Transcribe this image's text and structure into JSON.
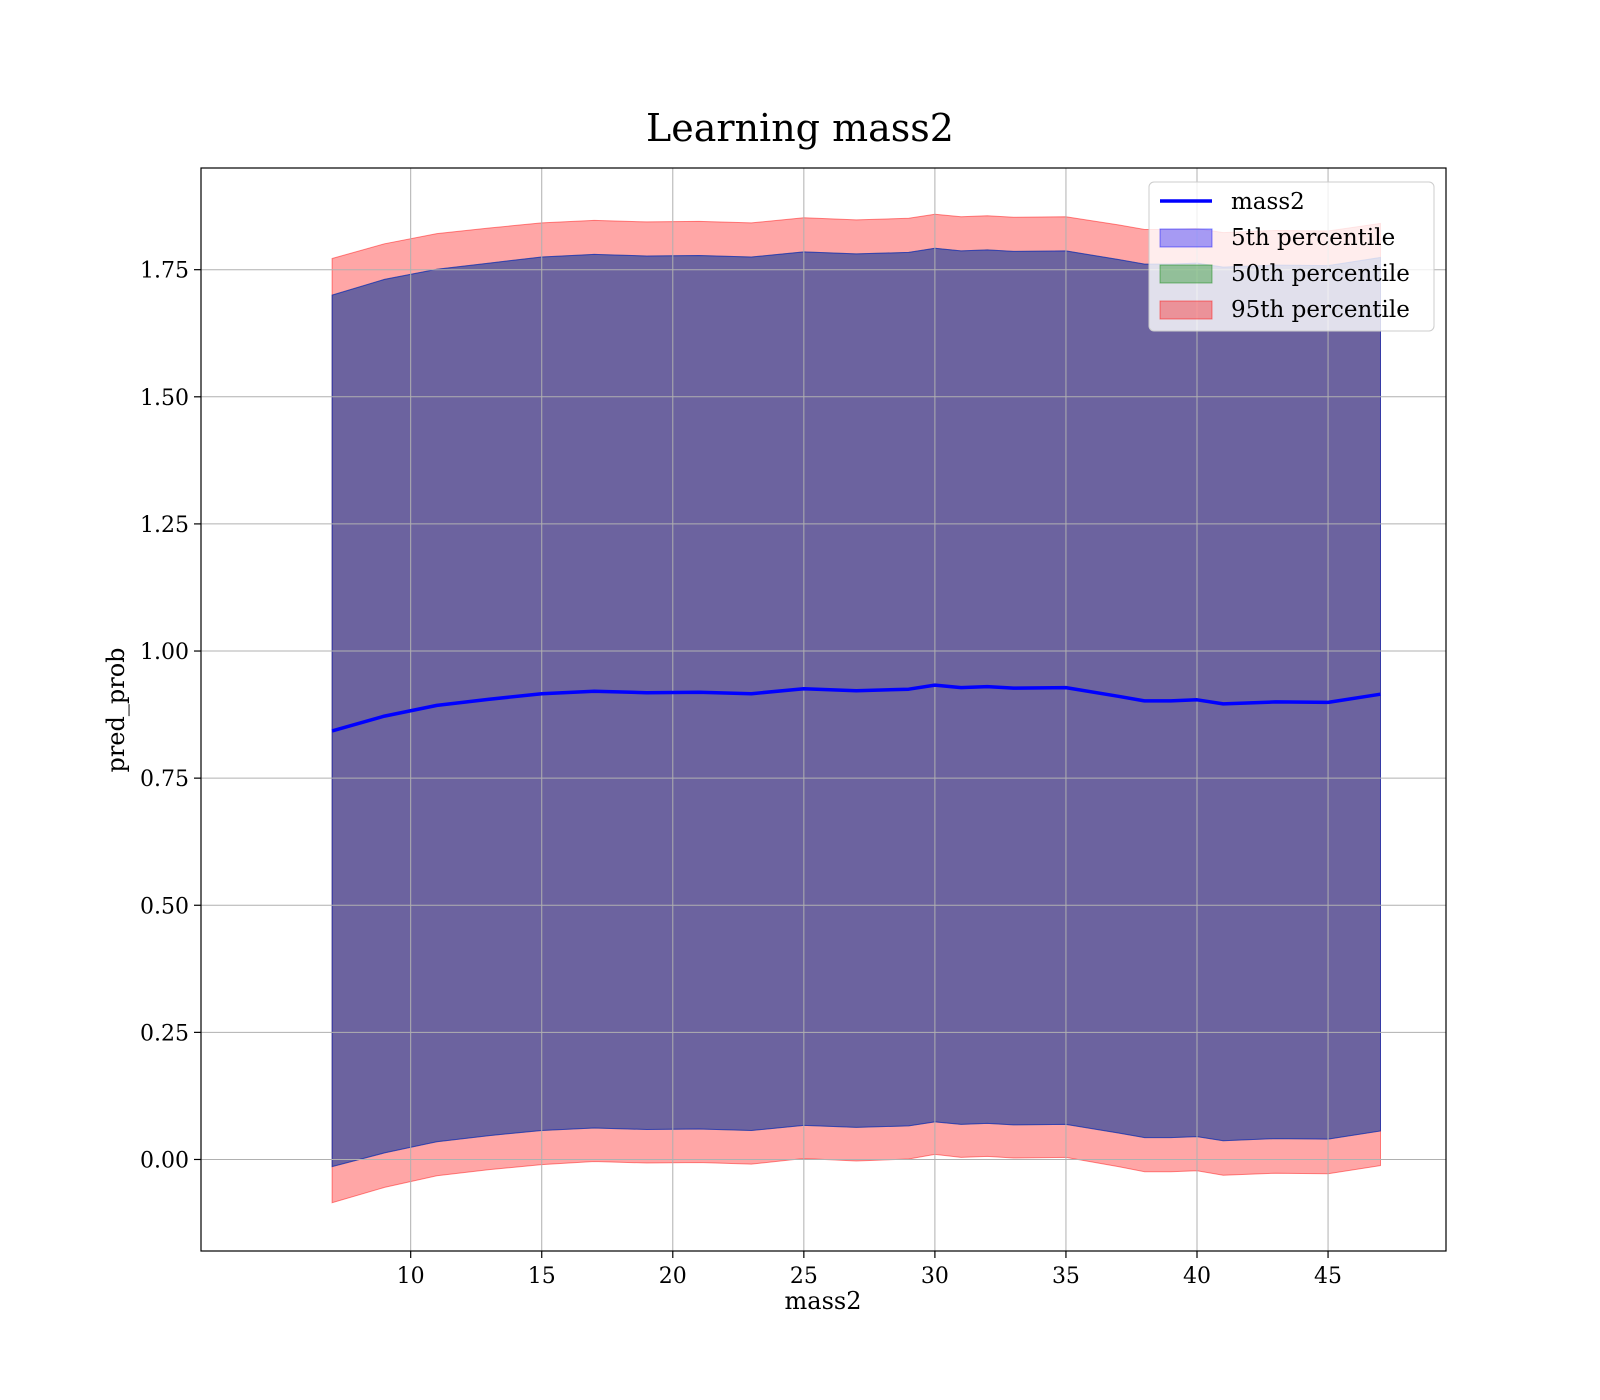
{
  "chart_data": {
    "type": "area",
    "title": "Learning mass2",
    "xlabel": "mass2",
    "ylabel": "pred_prob",
    "xlim": [
      2,
      49.5
    ],
    "ylim": [
      -0.18,
      1.95
    ],
    "xticks": [
      10,
      15,
      20,
      25,
      30,
      35,
      40,
      45
    ],
    "yticks": [
      0.0,
      0.25,
      0.5,
      0.75,
      1.0,
      1.25,
      1.5,
      1.75
    ],
    "ytick_labels": [
      "0.00",
      "0.25",
      "0.50",
      "0.75",
      "1.00",
      "1.25",
      "1.50",
      "1.75"
    ],
    "grid": true,
    "legend_position": "top-right",
    "x": [
      7,
      9,
      11,
      13,
      15,
      17,
      19,
      21,
      23,
      25,
      27,
      29,
      30,
      31,
      32,
      33,
      35,
      37,
      38,
      39,
      40,
      41,
      43,
      45,
      47
    ],
    "series": [
      {
        "name": "mass2",
        "kind": "line",
        "color": "#0000ff",
        "values": [
          0.843,
          0.872,
          0.893,
          0.905,
          0.916,
          0.921,
          0.918,
          0.919,
          0.916,
          0.926,
          0.922,
          0.925,
          0.933,
          0.928,
          0.93,
          0.927,
          0.928,
          0.911,
          0.902,
          0.902,
          0.904,
          0.896,
          0.9,
          0.899,
          0.915
        ]
      },
      {
        "name": "5th percentile",
        "kind": "band",
        "color": "#0000ff",
        "lower": [
          -0.014,
          0.013,
          0.035,
          0.047,
          0.057,
          0.062,
          0.059,
          0.06,
          0.057,
          0.067,
          0.063,
          0.066,
          0.074,
          0.069,
          0.071,
          0.068,
          0.069,
          0.052,
          0.043,
          0.043,
          0.045,
          0.037,
          0.041,
          0.04,
          0.056
        ],
        "upper": [
          1.7,
          1.731,
          1.751,
          1.763,
          1.775,
          1.78,
          1.777,
          1.778,
          1.775,
          1.785,
          1.781,
          1.784,
          1.792,
          1.787,
          1.789,
          1.786,
          1.787,
          1.77,
          1.761,
          1.761,
          1.763,
          1.755,
          1.759,
          1.758,
          1.774
        ]
      },
      {
        "name": "50th percentile",
        "kind": "band",
        "color": "#008000",
        "lower": [
          -0.014,
          0.013,
          0.035,
          0.047,
          0.057,
          0.062,
          0.059,
          0.06,
          0.057,
          0.067,
          0.063,
          0.066,
          0.074,
          0.069,
          0.071,
          0.068,
          0.069,
          0.052,
          0.043,
          0.043,
          0.045,
          0.037,
          0.041,
          0.04,
          0.056
        ],
        "upper": [
          1.7,
          1.731,
          1.751,
          1.763,
          1.775,
          1.78,
          1.777,
          1.778,
          1.775,
          1.785,
          1.781,
          1.784,
          1.792,
          1.787,
          1.789,
          1.786,
          1.787,
          1.77,
          1.761,
          1.761,
          1.763,
          1.755,
          1.759,
          1.758,
          1.774
        ]
      },
      {
        "name": "95th percentile",
        "kind": "band",
        "color": "#ff0000",
        "lower": [
          -0.085,
          -0.055,
          -0.032,
          -0.02,
          -0.01,
          -0.004,
          -0.007,
          -0.006,
          -0.009,
          0.002,
          -0.003,
          0.001,
          0.01,
          0.004,
          0.006,
          0.003,
          0.004,
          -0.014,
          -0.024,
          -0.024,
          -0.022,
          -0.031,
          -0.027,
          -0.028,
          -0.012
        ],
        "upper": [
          1.772,
          1.801,
          1.821,
          1.832,
          1.842,
          1.847,
          1.844,
          1.845,
          1.842,
          1.852,
          1.848,
          1.851,
          1.859,
          1.854,
          1.856,
          1.853,
          1.854,
          1.838,
          1.829,
          1.829,
          1.831,
          1.823,
          1.827,
          1.826,
          1.841
        ]
      }
    ]
  }
}
